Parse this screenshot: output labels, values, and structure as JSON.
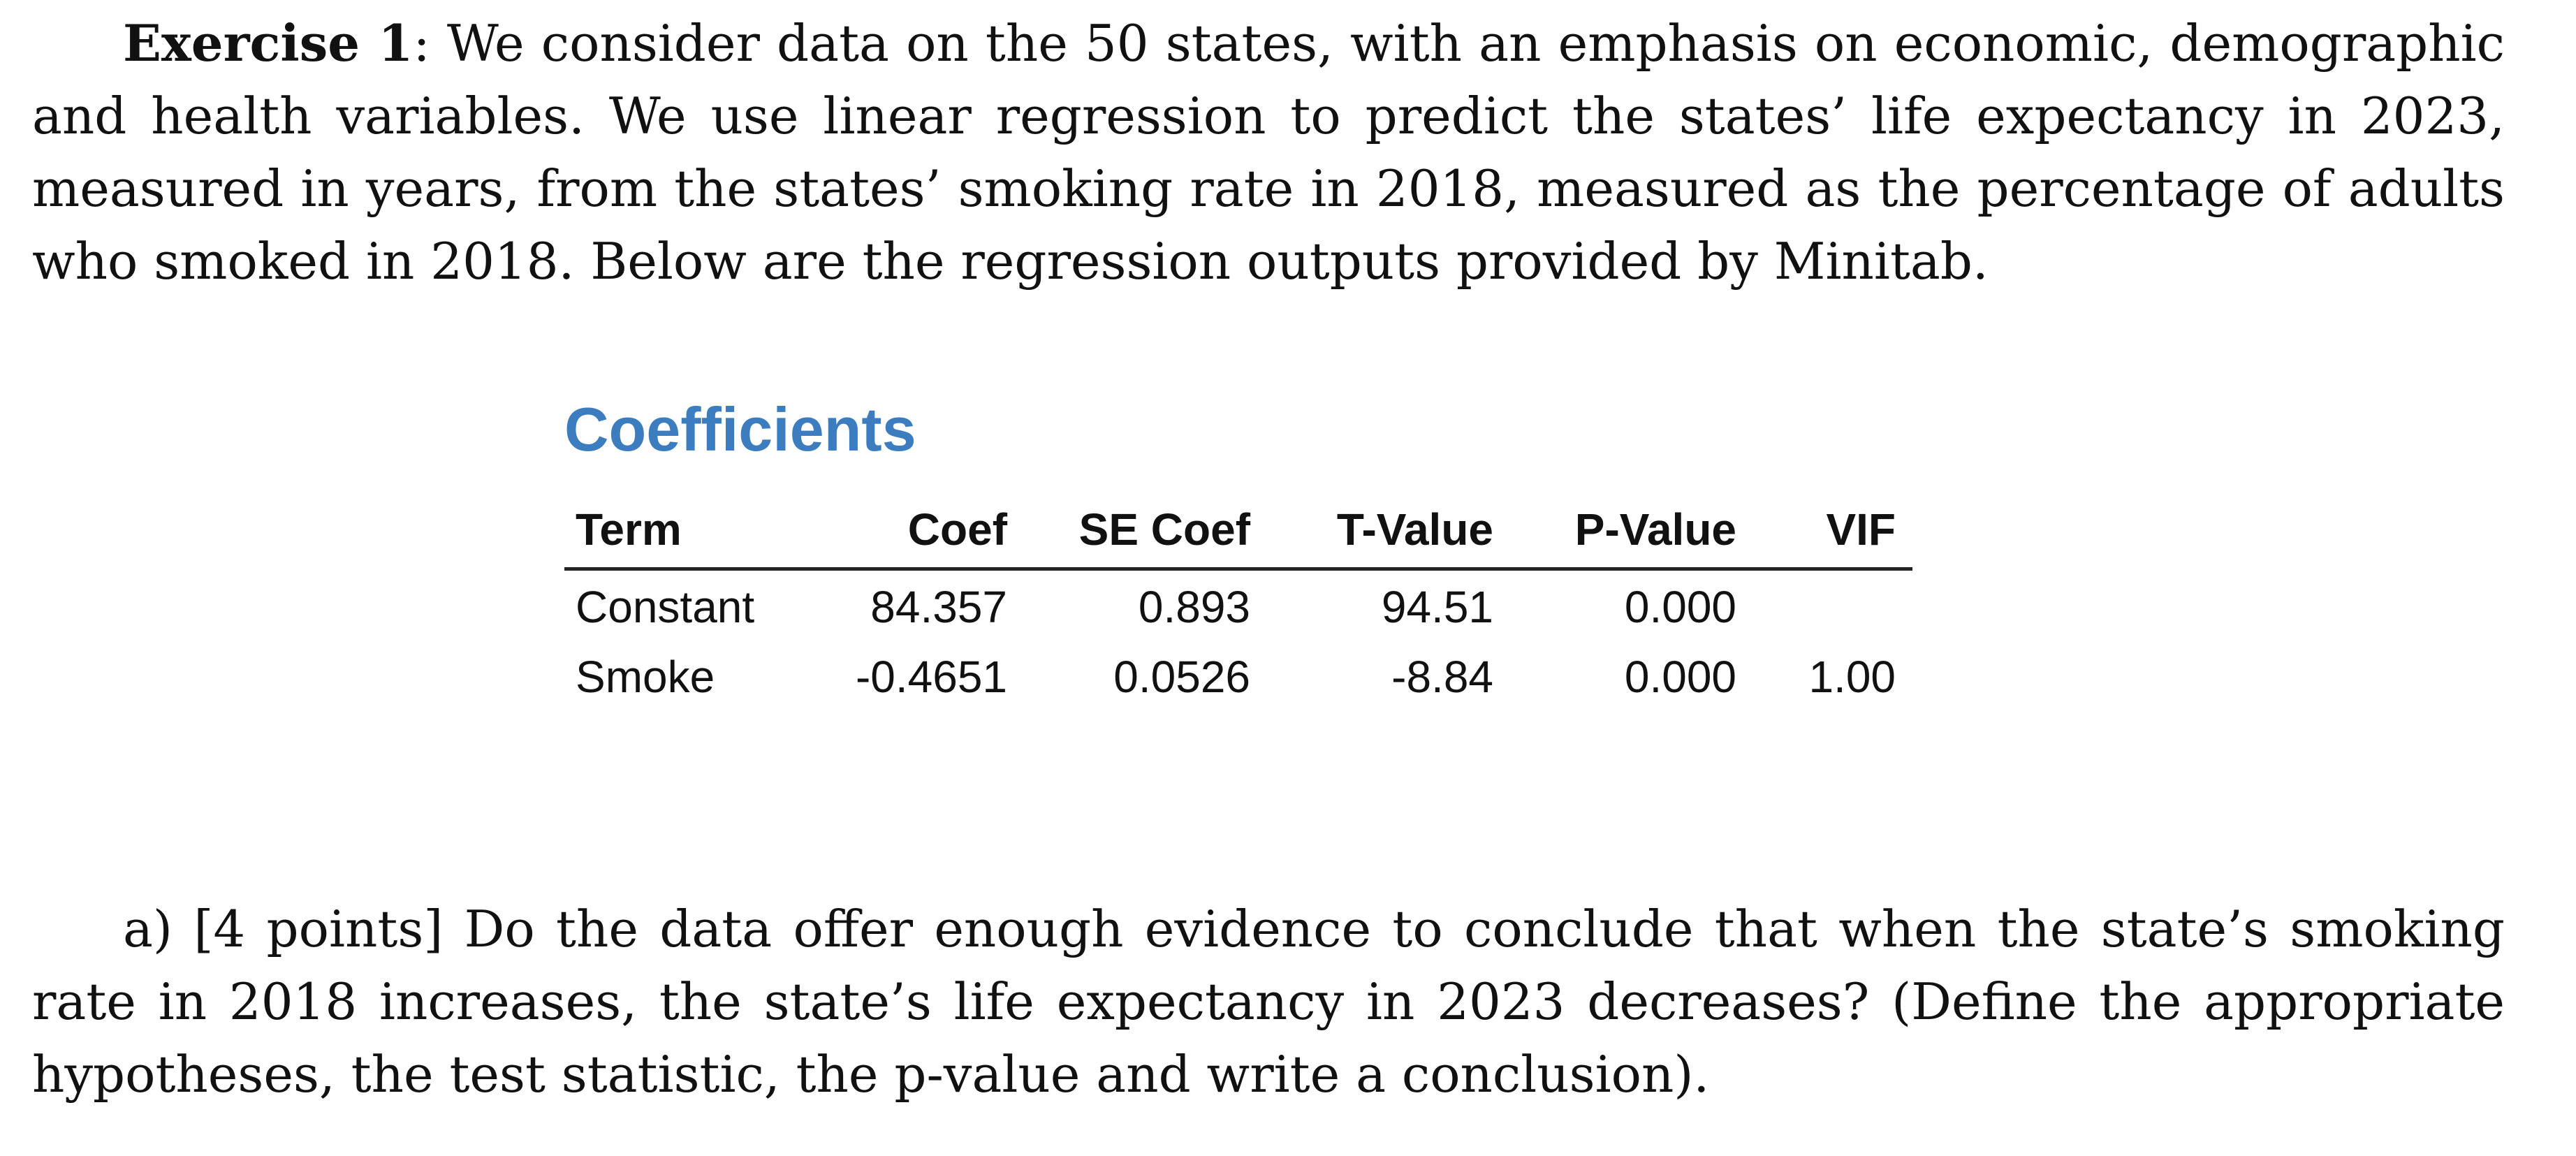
{
  "exercise": {
    "label": "Exercise 1",
    "text": ": We consider data on the 50 states, with an emphasis on economic, demographic and health variables.  We use linear regression to predict the states’ life expectancy in 2023, measured in years, from the states’ smoking rate in 2018, measured as the percentage of adults who smoked in 2018. Below are the regression outputs provided by Minitab."
  },
  "coefficients": {
    "title": "Coefficients",
    "headers": {
      "term": "Term",
      "coef": "Coef",
      "se_coef": "SE Coef",
      "t_value": "T-Value",
      "p_value": "P-Value",
      "vif": "VIF"
    },
    "rows": [
      {
        "term": "Constant",
        "coef": "84.357",
        "se_coef": "0.893",
        "t_value": "94.51",
        "p_value": "0.000",
        "vif": ""
      },
      {
        "term": "Smoke",
        "coef": "-0.4651",
        "se_coef": "0.0526",
        "t_value": "-8.84",
        "p_value": "0.000",
        "vif": "1.00"
      }
    ]
  },
  "question_a": {
    "text": "a) [4 points] Do the data offer enough evidence to conclude that when the state’s smoking rate in 2018 increases, the state’s life expectancy in 2023 decreases?  (Define the appropriate hypotheses, the test statistic, the p-value and write a conclusion)."
  }
}
